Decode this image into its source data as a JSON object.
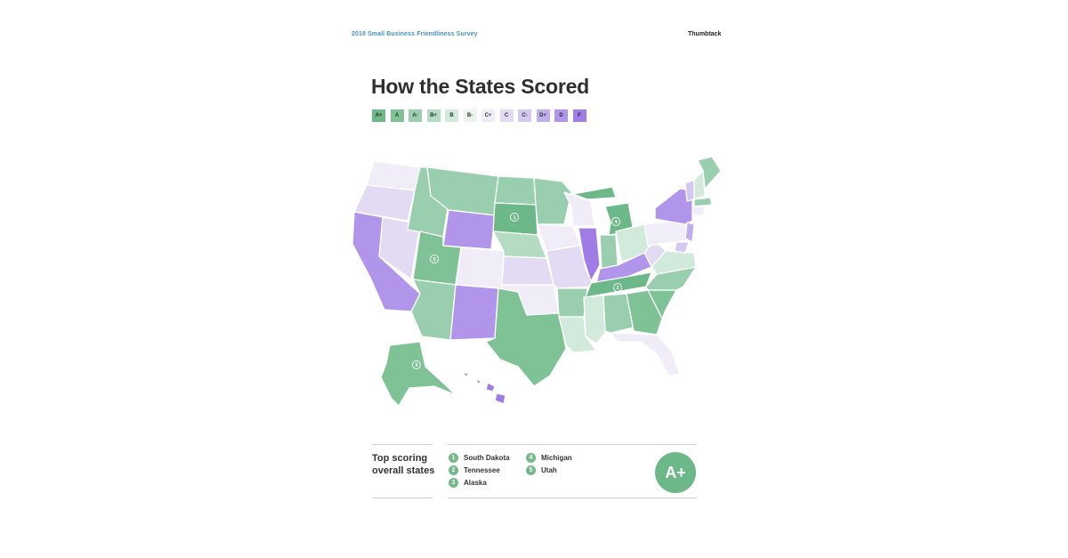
{
  "header": {
    "survey_title": "2018 Small Business Friendliness Survey",
    "brand": "Thumbtack"
  },
  "title": "How the States Scored",
  "legend": [
    {
      "grade": "A+",
      "color": "#6cb888"
    },
    {
      "grade": "A",
      "color": "#7fc295"
    },
    {
      "grade": "A-",
      "color": "#99cfae"
    },
    {
      "grade": "B+",
      "color": "#b3dcc3"
    },
    {
      "grade": "B",
      "color": "#d2eadb"
    },
    {
      "grade": "B-",
      "color": "#ecf5ef"
    },
    {
      "grade": "C+",
      "color": "#f1edf8"
    },
    {
      "grade": "C",
      "color": "#e3dbf4"
    },
    {
      "grade": "C-",
      "color": "#d4c7f0"
    },
    {
      "grade": "D+",
      "color": "#c1aeec"
    },
    {
      "grade": "D",
      "color": "#b095ea"
    },
    {
      "grade": "F",
      "color": "#9f7ce6"
    }
  ],
  "map": {
    "rank_labels": [
      {
        "rank": "1",
        "state": "South Dakota"
      },
      {
        "rank": "2",
        "state": "Tennessee"
      },
      {
        "rank": "3",
        "state": "Alaska"
      },
      {
        "rank": "4",
        "state": "Michigan"
      },
      {
        "rank": "5",
        "state": "Utah"
      }
    ],
    "state_grades": {
      "WA": "C+",
      "OR": "C",
      "CA": "D",
      "NV": "C",
      "ID": "A-",
      "MT": "A-",
      "WY": "D",
      "UT": "A",
      "AZ": "A-",
      "NM": "D",
      "CO": "C+",
      "ND": "A-",
      "SD": "A+",
      "NE": "B+",
      "KS": "C",
      "OK": "C+",
      "TX": "A",
      "MN": "A-",
      "IA": "C+",
      "MO": "C",
      "AR": "A-",
      "LA": "B",
      "WI": "C+",
      "IL": "F",
      "MI": "A+",
      "IN": "A-",
      "OH": "B",
      "KY": "D",
      "TN": "A+",
      "MS": "B",
      "AL": "A-",
      "GA": "A",
      "FL": "C+",
      "SC": "A",
      "NC": "A-",
      "VA": "B",
      "WV": "C",
      "PA": "C+",
      "NY": "D",
      "VT": "C-",
      "NH": "B",
      "ME": "A-",
      "MA": "A-",
      "CT": "C+",
      "NJ": "D+",
      "MD": "C-",
      "AK": "A",
      "HI": "F"
    }
  },
  "summary": {
    "label": "Top scoring overall states",
    "top_states": [
      {
        "rank": "1",
        "name": "South Dakota"
      },
      {
        "rank": "2",
        "name": "Tennessee"
      },
      {
        "rank": "3",
        "name": "Alaska"
      },
      {
        "rank": "4",
        "name": "Michigan"
      },
      {
        "rank": "5",
        "name": "Utah"
      }
    ],
    "grade": "A+"
  }
}
